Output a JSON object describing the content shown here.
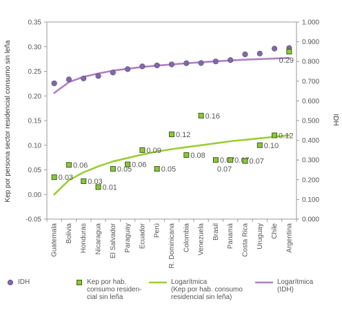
{
  "chart_data": {
    "type": "scatter",
    "categories": [
      "Guatemala",
      "Bolivia",
      "Honduras",
      "Nicaragua",
      "El Salvador",
      "Paraguay",
      "Ecuador",
      "Perú",
      "R. Dominicana",
      "Colombia",
      "Venezuela",
      "Brasil",
      "Panamá",
      "Costa Rica",
      "Uruguay",
      "Chile",
      "Argentina"
    ],
    "xlabel": "",
    "ylabel": "Kep por persona sector residencial consumo sin leña",
    "y2label": "IDH",
    "ylim": [
      -0.05,
      0.35
    ],
    "y2lim": [
      0.0,
      1.0
    ],
    "y_ticks": [
      "0.35",
      "0.30",
      "0.25",
      "0.20",
      "0.15",
      "0.10",
      "0.05",
      "0.00",
      "-0.05"
    ],
    "y2_ticks": [
      "1.000",
      "0.900",
      "0.800",
      "0.700",
      "0.600",
      "0.500",
      "0.400",
      "0.300",
      "0.200",
      "0.100",
      "0.000"
    ],
    "grid": false,
    "legend_position": "bottom",
    "series": [
      {
        "name": "IDH",
        "axis": "right",
        "marker": "circle",
        "color": "#7f6aa6",
        "values": [
          0.689,
          0.709,
          0.714,
          0.726,
          0.744,
          0.761,
          0.775,
          0.78,
          0.785,
          0.791,
          0.792,
          0.8,
          0.807,
          0.836,
          0.84,
          0.865,
          0.868
        ]
      },
      {
        "name": "Kep por hab. consumo residencial sin leña",
        "axis": "left",
        "marker": "square",
        "color": "#8dc63f",
        "values": [
          0.035,
          0.06,
          0.027,
          0.015,
          0.052,
          0.061,
          0.09,
          0.052,
          0.122,
          0.08,
          0.16,
          0.07,
          0.07,
          0.068,
          0.1,
          0.12,
          0.29
        ],
        "labels": [
          "0.03",
          "0.06",
          "0.03",
          "0.01",
          "0.05",
          "0.06",
          "0.09",
          "0.05",
          "0.12",
          "0.08",
          "0.16",
          "0.07",
          "0.07",
          "0.07",
          "0.10",
          "0.12",
          "0.29"
        ],
        "extra_labels": [
          {
            "index": 11,
            "text": "0.07"
          }
        ]
      },
      {
        "name": "Logarítmica (Kep por hab. consumo residencial sin leña)",
        "axis": "left",
        "type": "line",
        "color": "#9acd32",
        "fit": "logarithmic",
        "values": [
          0.0,
          0.029,
          0.045,
          0.057,
          0.067,
          0.074,
          0.081,
          0.087,
          0.092,
          0.096,
          0.1,
          0.104,
          0.108,
          0.111,
          0.114,
          0.117,
          0.12
        ]
      },
      {
        "name": "Logarítmica (IDH)",
        "axis": "right",
        "type": "line",
        "color": "#b07fc0",
        "fit": "logarithmic",
        "values": [
          0.64,
          0.695,
          0.722,
          0.739,
          0.753,
          0.763,
          0.772,
          0.779,
          0.785,
          0.791,
          0.796,
          0.801,
          0.805,
          0.809,
          0.812,
          0.815,
          0.818
        ]
      }
    ]
  },
  "legend": [
    {
      "label": "IDH",
      "swatch": "circle",
      "color": "#7f6aa6"
    },
    {
      "label": "Kep por hab.\nconsumo residen-\ncial sin leña",
      "swatch": "square",
      "color": "#8dc63f"
    },
    {
      "label": "Logarítmica\n(Kep por hab. consumo\nresidencial sin leña)",
      "swatch": "line",
      "color": "#9acd32"
    },
    {
      "label": "Logarítmica\n(IDH)",
      "swatch": "line",
      "color": "#b07fc0"
    }
  ]
}
